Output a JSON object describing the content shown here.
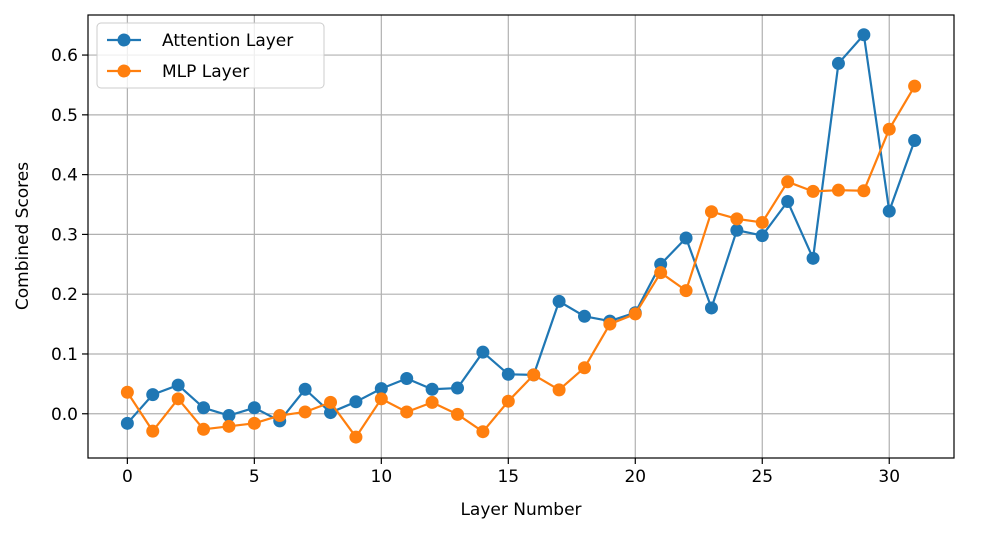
{
  "chart_data": {
    "type": "line",
    "title": "",
    "xlabel": "Layer Number",
    "ylabel": "Combined Scores",
    "xlim": [
      -1.55,
      32.55
    ],
    "ylim": [
      -0.074,
      0.667
    ],
    "xticks": [
      0,
      5,
      10,
      15,
      20,
      25,
      30
    ],
    "yticks": [
      0.0,
      0.1,
      0.2,
      0.3,
      0.4,
      0.5,
      0.6
    ],
    "xtick_labels": [
      "0",
      "5",
      "10",
      "15",
      "20",
      "25",
      "30"
    ],
    "ytick_labels": [
      "0.0",
      "0.1",
      "0.2",
      "0.3",
      "0.4",
      "0.5",
      "0.6"
    ],
    "grid": true,
    "legend_position": "top-left",
    "x": [
      0,
      1,
      2,
      3,
      4,
      5,
      6,
      7,
      8,
      9,
      10,
      11,
      12,
      13,
      14,
      15,
      16,
      17,
      18,
      19,
      20,
      21,
      22,
      23,
      24,
      25,
      26,
      27,
      28,
      29,
      30,
      31
    ],
    "series": [
      {
        "name": "Attention Layer",
        "color": "#1f77b4",
        "values": [
          -0.016,
          0.032,
          0.048,
          0.01,
          -0.003,
          0.01,
          -0.012,
          0.041,
          0.002,
          0.02,
          0.042,
          0.059,
          0.041,
          0.043,
          0.103,
          0.066,
          0.065,
          0.188,
          0.163,
          0.155,
          0.169,
          0.25,
          0.294,
          0.177,
          0.307,
          0.298,
          0.355,
          0.26,
          0.586,
          0.634,
          0.339,
          0.457
        ]
      },
      {
        "name": "MLP Layer",
        "color": "#ff7f0e",
        "values": [
          0.036,
          -0.029,
          0.025,
          -0.026,
          -0.021,
          -0.016,
          -0.003,
          0.003,
          0.019,
          -0.039,
          0.025,
          0.003,
          0.019,
          -0.001,
          -0.03,
          0.021,
          0.065,
          0.04,
          0.077,
          0.15,
          0.167,
          0.236,
          0.206,
          0.338,
          0.326,
          0.32,
          0.388,
          0.372,
          0.374,
          0.373,
          0.476,
          0.548
        ]
      }
    ]
  }
}
